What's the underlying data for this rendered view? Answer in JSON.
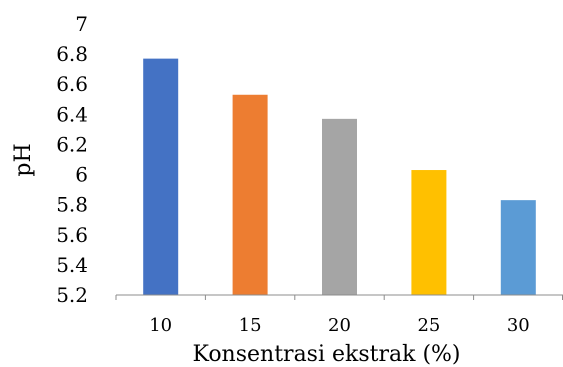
{
  "chart_data": {
    "type": "bar",
    "title": "",
    "xlabel": "Konsentrasi ekstrak (%)",
    "ylabel": "pH",
    "categories": [
      "10",
      "15",
      "20",
      "25",
      "30"
    ],
    "values": [
      6.77,
      6.53,
      6.37,
      6.03,
      5.83
    ],
    "bar_colors": [
      "#4472C4",
      "#ED7D31",
      "#A5A5A5",
      "#FFC000",
      "#5B9BD5"
    ],
    "ylim": [
      5.2,
      7
    ],
    "yticks": [
      "5.2",
      "5.4",
      "5.6",
      "5.8",
      "6",
      "6.2",
      "6.4",
      "6.6",
      "6.8",
      "7"
    ],
    "grid": false,
    "legend": "none"
  }
}
